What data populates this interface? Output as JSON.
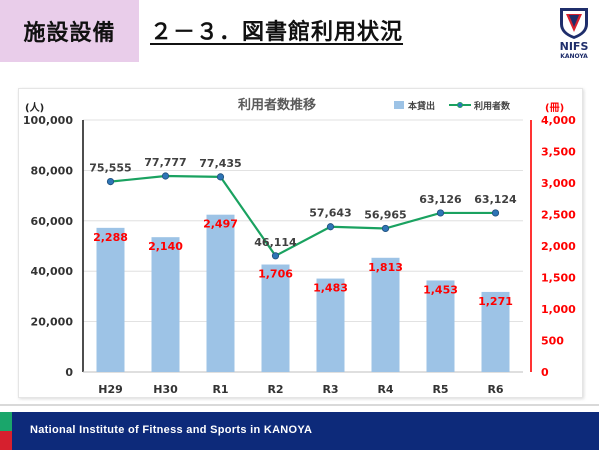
{
  "header": {
    "tag": "施設設備",
    "title": "２－３．図書館利用状況",
    "logo_text": "NIFS",
    "logo_sub": "KANOYA"
  },
  "footer": {
    "text": "National Institute of Fitness and Sports in KANOYA"
  },
  "colors": {
    "bar": "#9dc3e6",
    "line": "#1aa260",
    "marker": "#2e75b6",
    "right_axis": "#ff0000",
    "footer_bg": "#0d2a7a"
  },
  "chart_data": {
    "type": "bar",
    "title": "利用者数推移",
    "categories": [
      "H29",
      "H30",
      "R1",
      "R2",
      "R3",
      "R4",
      "R5",
      "R6"
    ],
    "left_axis": {
      "unit": "(人)",
      "ylim": [
        0,
        100000
      ],
      "ticks": [
        "0",
        "20,000",
        "40,000",
        "60,000",
        "80,000",
        "100,000"
      ]
    },
    "right_axis": {
      "unit": "(冊)",
      "ylim": [
        0,
        4000
      ],
      "ticks": [
        "0",
        "500",
        "1,000",
        "1,500",
        "2,000",
        "2,500",
        "3,000",
        "3,500",
        "4,000"
      ]
    },
    "legend": {
      "position": "top-right"
    },
    "series": [
      {
        "name": "本貸出",
        "type": "bar",
        "axis": "right",
        "values": [
          2288,
          2140,
          2497,
          1706,
          1483,
          1813,
          1453,
          1271
        ],
        "labels": [
          "2,288",
          "2,140",
          "2,497",
          "1,706",
          "1,483",
          "1,813",
          "1,453",
          "1,271"
        ]
      },
      {
        "name": "利用者数",
        "type": "line",
        "axis": "left",
        "values": [
          75555,
          77777,
          77435,
          46114,
          57643,
          56965,
          63126,
          63124
        ],
        "labels": [
          "75,555",
          "77,777",
          "77,435",
          "46,114",
          "57,643",
          "56,965",
          "63,126",
          "63,124"
        ]
      }
    ]
  }
}
